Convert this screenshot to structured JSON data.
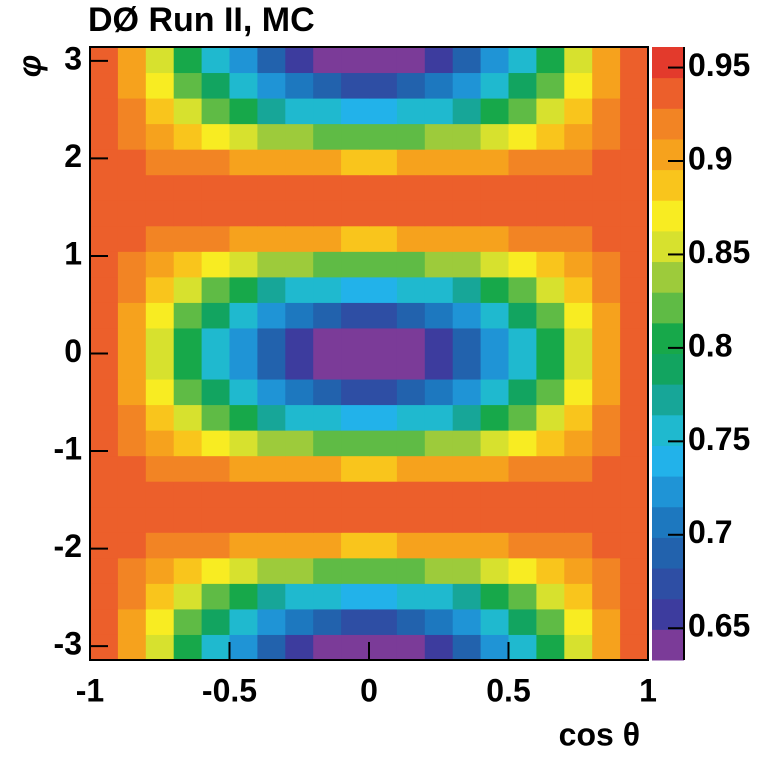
{
  "chart_data": {
    "type": "heatmap",
    "title": "DØ Run II, MC",
    "xlabel": "cos θ",
    "ylabel": "φ",
    "xlim": [
      -1,
      1
    ],
    "ylim": [
      -3.1416,
      3.1416
    ],
    "zlim": [
      0.633,
      0.961
    ],
    "xticks": [
      -1,
      -0.5,
      0,
      0.5,
      1
    ],
    "yticks": [
      -3,
      -2,
      -1,
      0,
      1,
      2,
      3
    ],
    "zticks": [
      0.65,
      0.7,
      0.75,
      0.8,
      0.85,
      0.9,
      0.95
    ],
    "xbins": [
      -1,
      -0.9,
      -0.8,
      -0.7,
      -0.6,
      -0.5,
      -0.4,
      -0.3,
      -0.2,
      -0.1,
      0,
      0.1,
      0.2,
      0.3,
      0.4,
      0.5,
      0.6,
      0.7,
      0.8,
      0.9,
      1
    ],
    "ybins": [
      -3.1416,
      -2.8798,
      -2.618,
      -2.3562,
      -2.0944,
      -1.8326,
      -1.5708,
      -1.309,
      -1.0472,
      -0.7854,
      -0.5236,
      -0.2618,
      0,
      0.2618,
      0.5236,
      0.7854,
      1.0472,
      1.309,
      1.5708,
      1.8326,
      2.0944,
      2.3562,
      2.618,
      2.8798,
      3.1416
    ],
    "palette": [
      "#7b3b98",
      "#3d3c9e",
      "#2e4ea4",
      "#2262ad",
      "#1d78bf",
      "#1f94d6",
      "#22b2ea",
      "#1fb9cf",
      "#17a698",
      "#12a460",
      "#17a84a",
      "#5fbb45",
      "#9dcb3b",
      "#d7e12e",
      "#f8ec22",
      "#f9c51c",
      "#f6a21d",
      "#f28424",
      "#ec5f2b",
      "#e33a2c"
    ],
    "z": [
      [
        0.931,
        0.896,
        0.852,
        0.806,
        0.762,
        0.723,
        0.69,
        0.663,
        0.646,
        0.636,
        0.636,
        0.646,
        0.663,
        0.69,
        0.723,
        0.762,
        0.806,
        0.852,
        0.896,
        0.931
      ],
      [
        0.932,
        0.901,
        0.863,
        0.824,
        0.786,
        0.751,
        0.722,
        0.7,
        0.684,
        0.676,
        0.676,
        0.684,
        0.7,
        0.722,
        0.751,
        0.786,
        0.824,
        0.863,
        0.901,
        0.932
      ],
      [
        0.934,
        0.912,
        0.884,
        0.854,
        0.826,
        0.801,
        0.78,
        0.763,
        0.752,
        0.746,
        0.746,
        0.752,
        0.763,
        0.78,
        0.801,
        0.826,
        0.854,
        0.884,
        0.912,
        0.934
      ],
      [
        0.937,
        0.923,
        0.907,
        0.89,
        0.873,
        0.858,
        0.846,
        0.836,
        0.829,
        0.825,
        0.825,
        0.829,
        0.836,
        0.846,
        0.858,
        0.873,
        0.89,
        0.907,
        0.923,
        0.937
      ],
      [
        0.939,
        0.933,
        0.927,
        0.92,
        0.914,
        0.908,
        0.903,
        0.899,
        0.896,
        0.895,
        0.895,
        0.896,
        0.899,
        0.903,
        0.908,
        0.914,
        0.92,
        0.927,
        0.933,
        0.939
      ],
      [
        0.94,
        0.939,
        0.939,
        0.938,
        0.937,
        0.936,
        0.936,
        0.935,
        0.935,
        0.935,
        0.935,
        0.935,
        0.935,
        0.936,
        0.936,
        0.937,
        0.938,
        0.939,
        0.939,
        0.94
      ],
      [
        0.94,
        0.939,
        0.939,
        0.938,
        0.937,
        0.936,
        0.936,
        0.935,
        0.935,
        0.935,
        0.935,
        0.935,
        0.935,
        0.936,
        0.936,
        0.937,
        0.938,
        0.939,
        0.939,
        0.94
      ],
      [
        0.939,
        0.933,
        0.927,
        0.92,
        0.914,
        0.908,
        0.903,
        0.899,
        0.896,
        0.895,
        0.895,
        0.896,
        0.899,
        0.903,
        0.908,
        0.914,
        0.92,
        0.927,
        0.933,
        0.939
      ],
      [
        0.937,
        0.923,
        0.907,
        0.89,
        0.873,
        0.858,
        0.846,
        0.836,
        0.829,
        0.825,
        0.825,
        0.829,
        0.836,
        0.846,
        0.858,
        0.873,
        0.89,
        0.907,
        0.923,
        0.937
      ],
      [
        0.934,
        0.912,
        0.884,
        0.854,
        0.826,
        0.801,
        0.78,
        0.763,
        0.752,
        0.746,
        0.746,
        0.752,
        0.763,
        0.78,
        0.801,
        0.826,
        0.854,
        0.884,
        0.912,
        0.934
      ],
      [
        0.932,
        0.901,
        0.863,
        0.824,
        0.786,
        0.751,
        0.722,
        0.7,
        0.684,
        0.676,
        0.676,
        0.684,
        0.7,
        0.722,
        0.751,
        0.786,
        0.824,
        0.863,
        0.901,
        0.932
      ],
      [
        0.931,
        0.896,
        0.852,
        0.806,
        0.762,
        0.723,
        0.69,
        0.663,
        0.646,
        0.636,
        0.636,
        0.646,
        0.663,
        0.69,
        0.723,
        0.762,
        0.806,
        0.852,
        0.896,
        0.931
      ],
      [
        0.931,
        0.896,
        0.852,
        0.806,
        0.762,
        0.723,
        0.69,
        0.663,
        0.646,
        0.636,
        0.636,
        0.646,
        0.663,
        0.69,
        0.723,
        0.762,
        0.806,
        0.852,
        0.896,
        0.931
      ],
      [
        0.932,
        0.901,
        0.863,
        0.824,
        0.786,
        0.751,
        0.722,
        0.7,
        0.684,
        0.676,
        0.676,
        0.684,
        0.7,
        0.722,
        0.751,
        0.786,
        0.824,
        0.863,
        0.901,
        0.932
      ],
      [
        0.934,
        0.912,
        0.884,
        0.854,
        0.826,
        0.801,
        0.78,
        0.763,
        0.752,
        0.746,
        0.746,
        0.752,
        0.763,
        0.78,
        0.801,
        0.826,
        0.854,
        0.884,
        0.912,
        0.934
      ],
      [
        0.937,
        0.923,
        0.907,
        0.89,
        0.873,
        0.858,
        0.846,
        0.836,
        0.829,
        0.825,
        0.825,
        0.829,
        0.836,
        0.846,
        0.858,
        0.873,
        0.89,
        0.907,
        0.923,
        0.937
      ],
      [
        0.939,
        0.933,
        0.927,
        0.92,
        0.914,
        0.908,
        0.903,
        0.899,
        0.896,
        0.895,
        0.895,
        0.896,
        0.899,
        0.903,
        0.908,
        0.914,
        0.92,
        0.927,
        0.933,
        0.939
      ],
      [
        0.94,
        0.939,
        0.939,
        0.938,
        0.937,
        0.936,
        0.936,
        0.935,
        0.935,
        0.935,
        0.935,
        0.935,
        0.935,
        0.936,
        0.936,
        0.937,
        0.938,
        0.939,
        0.939,
        0.94
      ],
      [
        0.94,
        0.939,
        0.939,
        0.938,
        0.937,
        0.936,
        0.936,
        0.935,
        0.935,
        0.935,
        0.935,
        0.935,
        0.935,
        0.936,
        0.936,
        0.937,
        0.938,
        0.939,
        0.939,
        0.94
      ],
      [
        0.939,
        0.933,
        0.927,
        0.92,
        0.914,
        0.908,
        0.903,
        0.899,
        0.896,
        0.895,
        0.895,
        0.896,
        0.899,
        0.903,
        0.908,
        0.914,
        0.92,
        0.927,
        0.933,
        0.939
      ],
      [
        0.937,
        0.923,
        0.907,
        0.89,
        0.873,
        0.858,
        0.846,
        0.836,
        0.829,
        0.825,
        0.825,
        0.829,
        0.836,
        0.846,
        0.858,
        0.873,
        0.89,
        0.907,
        0.923,
        0.937
      ],
      [
        0.934,
        0.912,
        0.884,
        0.854,
        0.826,
        0.801,
        0.78,
        0.763,
        0.752,
        0.746,
        0.746,
        0.752,
        0.763,
        0.78,
        0.801,
        0.826,
        0.854,
        0.884,
        0.912,
        0.934
      ],
      [
        0.932,
        0.901,
        0.863,
        0.824,
        0.786,
        0.751,
        0.722,
        0.7,
        0.684,
        0.676,
        0.676,
        0.684,
        0.7,
        0.722,
        0.751,
        0.786,
        0.824,
        0.863,
        0.901,
        0.932
      ],
      [
        0.931,
        0.896,
        0.852,
        0.806,
        0.762,
        0.723,
        0.69,
        0.663,
        0.646,
        0.636,
        0.636,
        0.646,
        0.663,
        0.69,
        0.723,
        0.762,
        0.806,
        0.852,
        0.896,
        0.931
      ]
    ]
  }
}
